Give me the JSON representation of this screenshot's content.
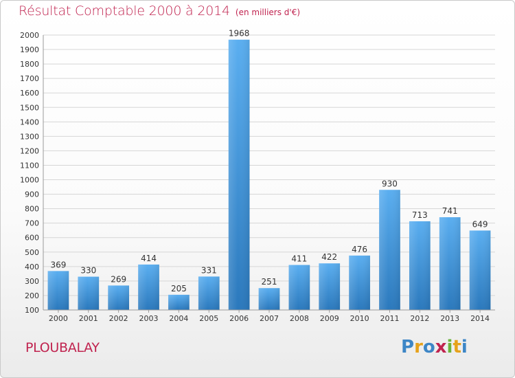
{
  "title": "Résultat Comptable 2000 à 2014",
  "subtitle": "(en milliers d'€)",
  "commune": "PLOUBALAY",
  "logo": {
    "text": "Proxiti",
    "colors": [
      "#3d86c6",
      "#e6a21b",
      "#3d86c6",
      "#c0234f",
      "#6bb33d",
      "#e6a21b",
      "#3d86c6"
    ]
  },
  "colors": {
    "title": "#c0234f",
    "bar_top": "#5aaef0",
    "bar_bottom": "#2a78bc",
    "grid": "#d6d6d6",
    "axis_text": "#333333"
  },
  "chart_data": {
    "type": "bar",
    "categories": [
      "2000",
      "2001",
      "2002",
      "2003",
      "2004",
      "2005",
      "2006",
      "2007",
      "2008",
      "2009",
      "2010",
      "2011",
      "2012",
      "2013",
      "2014"
    ],
    "values": [
      369,
      330,
      269,
      414,
      205,
      331,
      1968,
      251,
      411,
      422,
      476,
      930,
      713,
      741,
      649
    ],
    "title": "Résultat Comptable 2000 à 2014",
    "subtitle": "(en milliers d'€)",
    "xlabel": "",
    "ylabel": "",
    "ylim": [
      100,
      2000
    ],
    "yticks": [
      100,
      200,
      300,
      400,
      500,
      600,
      700,
      800,
      900,
      1000,
      1100,
      1200,
      1300,
      1400,
      1500,
      1600,
      1700,
      1800,
      1900,
      2000
    ],
    "grid": true,
    "data_labels": true
  }
}
